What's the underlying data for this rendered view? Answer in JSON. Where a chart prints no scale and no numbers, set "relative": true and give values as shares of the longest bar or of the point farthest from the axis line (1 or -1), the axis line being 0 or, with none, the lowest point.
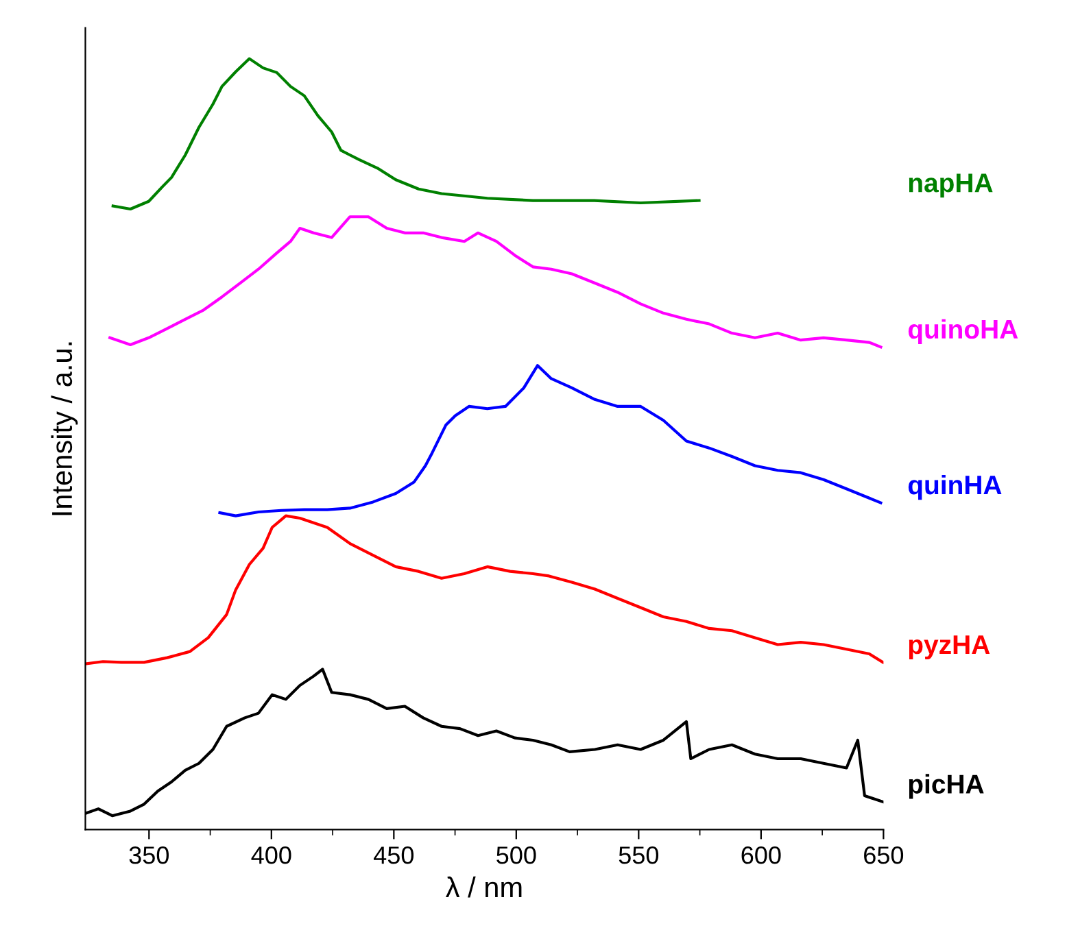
{
  "chart_data": {
    "type": "line",
    "relative": true,
    "xlabel": "λ / nm",
    "ylabel": "Intensity / a.u.",
    "xlim": [
      324,
      650
    ],
    "xticks": [
      350,
      {
        "value": 375,
        "label": null
      },
      400,
      {
        "value": 425,
        "label": null
      },
      450,
      {
        "value": 475,
        "label": null
      },
      500,
      {
        "value": 525,
        "label": null
      },
      550,
      {
        "value": 575,
        "label": null
      },
      600,
      {
        "value": 625,
        "label": null
      },
      650
    ],
    "series": [
      {
        "name": "napHA",
        "color": "#008000",
        "x": [
          335.3,
          342.4,
          349.9,
          355.5,
          359.2,
          364.8,
          370.4,
          376.1,
          379.8,
          385.4,
          391.0,
          396.6,
          402.2,
          407.8,
          413.4,
          419.0,
          424.6,
          428.4,
          435.8,
          443.3,
          450.8,
          460.1,
          469.5,
          488.2,
          506.8,
          531.9,
          550.8,
          574.7
        ],
        "values": [
          0.809,
          0.805,
          0.815,
          0.834,
          0.846,
          0.875,
          0.911,
          0.941,
          0.964,
          0.983,
          1,
          0.988,
          0.982,
          0.964,
          0.952,
          0.926,
          0.905,
          0.881,
          0.869,
          0.858,
          0.843,
          0.831,
          0.825,
          0.819,
          0.816,
          0.816,
          0.813,
          0.816
        ]
      },
      {
        "name": "quinoHA",
        "color": "#ff00ff",
        "x": [
          334.0,
          342.4,
          349.9,
          357.4,
          364.8,
          372.3,
          379.8,
          387.3,
          394.7,
          402.2,
          407.8,
          411.6,
          417.2,
          424.6,
          432.1,
          439.6,
          447.1,
          454.5,
          462.0,
          469.5,
          478.8,
          484.4,
          491.9,
          499.4,
          506.8,
          514.3,
          522.7,
          532.1,
          541.4,
          550.8,
          560.1,
          569.5,
          578.8,
          588.1,
          597.5,
          606.8,
          616.2,
          625.5,
          634.9,
          644.2,
          648.9
        ],
        "values": [
          0.638,
          0.629,
          0.638,
          0.65,
          0.662,
          0.674,
          0.691,
          0.709,
          0.727,
          0.748,
          0.763,
          0.78,
          0.774,
          0.768,
          0.795,
          0.795,
          0.78,
          0.774,
          0.774,
          0.768,
          0.763,
          0.774,
          0.763,
          0.745,
          0.73,
          0.727,
          0.721,
          0.709,
          0.697,
          0.682,
          0.67,
          0.662,
          0.656,
          0.644,
          0.638,
          0.644,
          0.635,
          0.638,
          0.635,
          0.632,
          0.626
        ]
      },
      {
        "name": "quinHA",
        "color": "#0000ff",
        "x": [
          378.9,
          385.4,
          394.7,
          404.1,
          413.4,
          422.8,
          432.1,
          441.5,
          450.8,
          458.3,
          462.9,
          465.7,
          471.3,
          475.1,
          480.7,
          488.2,
          495.6,
          503.1,
          508.7,
          514.3,
          522.7,
          532.1,
          541.4,
          550.8,
          560.1,
          569.5,
          578.8,
          588.1,
          597.5,
          606.8,
          616.2,
          625.5,
          634.9,
          644.2,
          648.9
        ],
        "values": [
          0.411,
          0.407,
          0.412,
          0.414,
          0.415,
          0.415,
          0.417,
          0.425,
          0.436,
          0.451,
          0.472,
          0.489,
          0.525,
          0.537,
          0.549,
          0.546,
          0.549,
          0.573,
          0.602,
          0.585,
          0.573,
          0.558,
          0.549,
          0.549,
          0.531,
          0.504,
          0.495,
          0.484,
          0.472,
          0.466,
          0.463,
          0.454,
          0.442,
          0.43,
          0.424
        ]
      },
      {
        "name": "pyzHA",
        "color": "#ff0000",
        "x": [
          324.0,
          331.2,
          338.7,
          348.0,
          357.4,
          366.7,
          374.2,
          381.7,
          385.4,
          391.0,
          396.6,
          400.3,
          405.9,
          411.6,
          417.2,
          422.8,
          432.1,
          441.5,
          450.8,
          460.1,
          469.5,
          478.8,
          488.2,
          497.5,
          506.8,
          513.4,
          522.7,
          532.1,
          541.4,
          550.8,
          560.1,
          569.5,
          578.8,
          588.1,
          597.5,
          606.8,
          616.2,
          625.5,
          634.9,
          644.2,
          649.8
        ],
        "values": [
          0.215,
          0.218,
          0.217,
          0.217,
          0.223,
          0.231,
          0.249,
          0.279,
          0.311,
          0.344,
          0.365,
          0.392,
          0.407,
          0.404,
          0.398,
          0.392,
          0.371,
          0.356,
          0.341,
          0.335,
          0.326,
          0.332,
          0.341,
          0.335,
          0.332,
          0.329,
          0.321,
          0.312,
          0.3,
          0.288,
          0.276,
          0.27,
          0.261,
          0.258,
          0.249,
          0.24,
          0.243,
          0.24,
          0.234,
          0.228,
          0.217
        ]
      },
      {
        "name": "picHA",
        "color": "#000000",
        "x": [
          324.0,
          329.3,
          335.0,
          342.4,
          348.0,
          353.6,
          359.2,
          364.8,
          370.4,
          376.1,
          381.7,
          389.1,
          394.7,
          400.3,
          405.9,
          411.6,
          417.2,
          420.9,
          424.6,
          432.1,
          439.6,
          447.1,
          454.5,
          462.0,
          469.5,
          477.0,
          484.4,
          491.9,
          499.4,
          506.8,
          514.3,
          521.8,
          532.1,
          541.4,
          550.8,
          560.1,
          569.5,
          571.3,
          578.8,
          588.1,
          597.5,
          606.8,
          616.2,
          625.5,
          634.9,
          639.5,
          642.3,
          649.8
        ],
        "values": [
          0.021,
          0.027,
          0.018,
          0.024,
          0.033,
          0.05,
          0.062,
          0.077,
          0.086,
          0.104,
          0.134,
          0.145,
          0.151,
          0.175,
          0.169,
          0.187,
          0.199,
          0.208,
          0.178,
          0.175,
          0.169,
          0.157,
          0.16,
          0.145,
          0.134,
          0.131,
          0.122,
          0.128,
          0.119,
          0.116,
          0.11,
          0.101,
          0.104,
          0.11,
          0.104,
          0.116,
          0.14,
          0.092,
          0.104,
          0.11,
          0.098,
          0.092,
          0.092,
          0.086,
          0.08,
          0.116,
          0.044,
          0.036
        ]
      }
    ]
  }
}
